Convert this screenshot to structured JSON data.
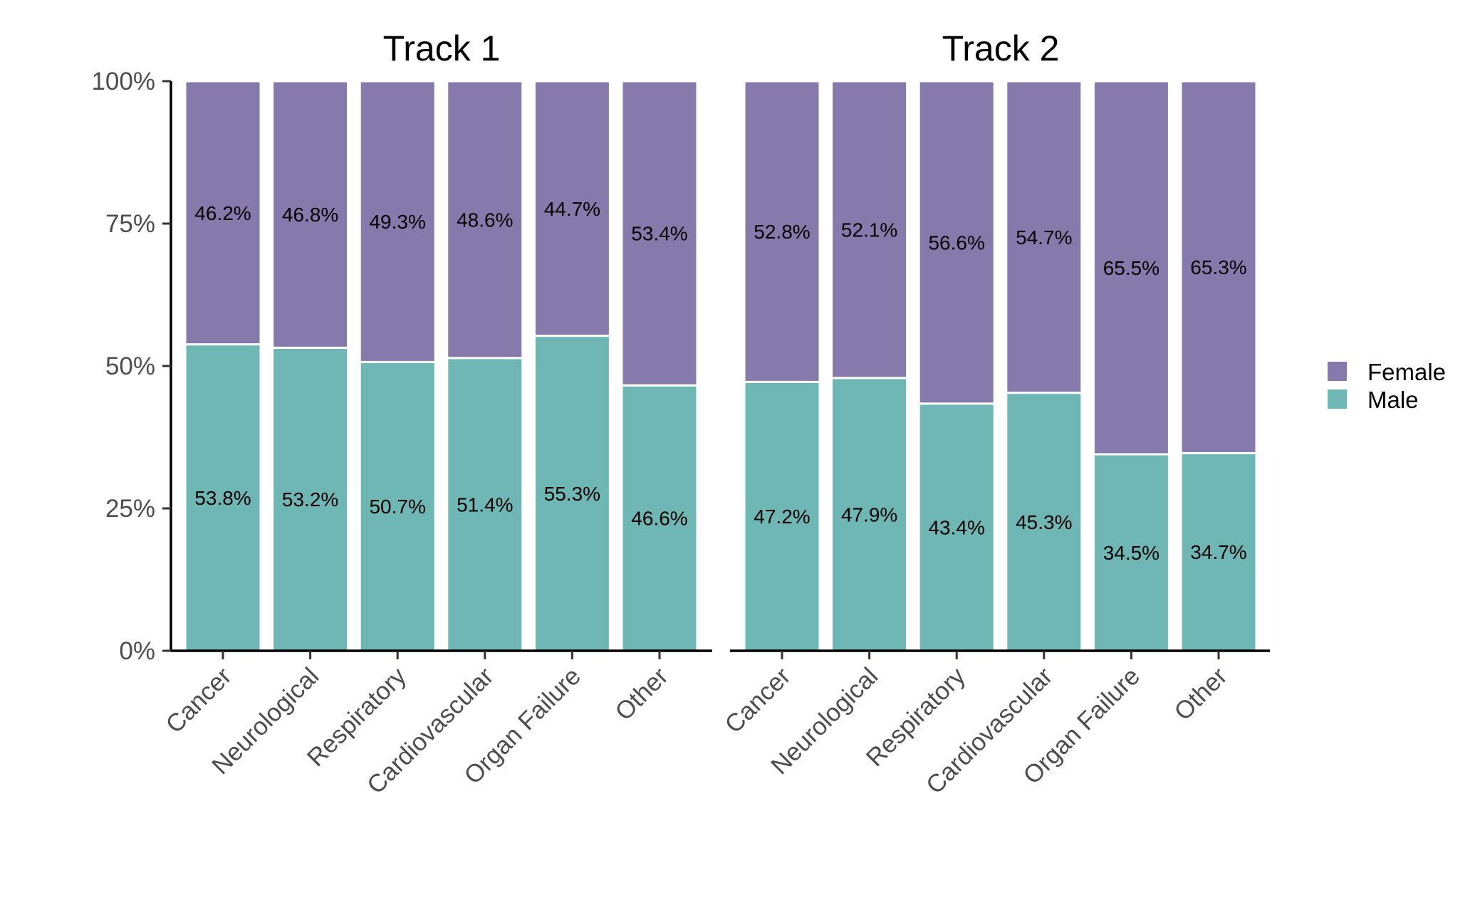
{
  "colors": {
    "female": "#8679ab",
    "male": "#6fb7b4"
  },
  "legend": [
    {
      "name": "Female",
      "color": "#8679ab"
    },
    {
      "name": "Male",
      "color": "#6fb7b4"
    }
  ],
  "chart_data": [
    {
      "type": "bar",
      "stacked": true,
      "title": "Track 1",
      "categories": [
        "Cancer",
        "Neurological",
        "Respiratory",
        "Cardiovascular",
        "Organ Failure",
        "Other"
      ],
      "series": [
        {
          "name": "Male",
          "values": [
            53.8,
            53.2,
            50.7,
            51.4,
            55.3,
            46.6
          ],
          "labels": [
            "53.8%",
            "53.2%",
            "50.7%",
            "51.4%",
            "55.3%",
            "46.6%"
          ]
        },
        {
          "name": "Female",
          "values": [
            46.2,
            46.8,
            49.3,
            48.6,
            44.7,
            53.4
          ],
          "labels": [
            "46.2%",
            "46.8%",
            "49.3%",
            "48.6%",
            "44.7%",
            "53.4%"
          ]
        }
      ],
      "yticks": [
        "0%",
        "25%",
        "50%",
        "75%",
        "100%"
      ],
      "ylim": [
        0,
        100
      ],
      "legend_position": "right"
    },
    {
      "type": "bar",
      "stacked": true,
      "title": "Track 2",
      "categories": [
        "Cancer",
        "Neurological",
        "Respiratory",
        "Cardiovascular",
        "Organ Failure",
        "Other"
      ],
      "series": [
        {
          "name": "Male",
          "values": [
            47.2,
            47.9,
            43.4,
            45.3,
            34.5,
            34.7
          ],
          "labels": [
            "47.2%",
            "47.9%",
            "43.4%",
            "45.3%",
            "34.5%",
            "34.7%"
          ]
        },
        {
          "name": "Female",
          "values": [
            52.8,
            52.1,
            56.6,
            54.7,
            65.5,
            65.3
          ],
          "labels": [
            "52.8%",
            "52.1%",
            "56.6%",
            "54.7%",
            "65.5%",
            "65.3%"
          ]
        }
      ],
      "ylim": [
        0,
        100
      ],
      "legend_position": "right"
    }
  ]
}
